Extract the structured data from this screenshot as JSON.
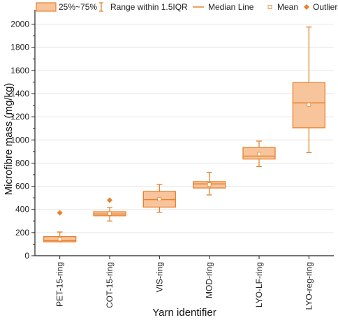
{
  "chart_data": {
    "type": "box",
    "ylabel": "Microfibre mass (mg/kg)",
    "xlabel": "Yarn identifier",
    "ylim": [
      0,
      2100
    ],
    "yticks": [
      0,
      200,
      400,
      600,
      800,
      1000,
      1200,
      1400,
      1600,
      1800,
      2000
    ],
    "grid": true,
    "legend": {
      "placement": "top",
      "entries": [
        "25%~75%",
        "Range within 1.5IQR",
        "Median Line",
        "Mean",
        "Outliers"
      ]
    },
    "colors": {
      "box_fill": "#f8c49c",
      "box_stroke": "#e8822e",
      "grid": "#e6e6e6"
    },
    "categories": [
      "PET-15-ring",
      "COT-15-ring",
      "VIS-ring",
      "MOD-ring",
      "LYO-LF-ring",
      "LYO-reg-ring"
    ],
    "boxes": [
      {
        "category": "PET-15-ring",
        "whisker_low": 120,
        "q1": 120,
        "median": 130,
        "q3": 165,
        "whisker_high": 205,
        "mean": 143,
        "outliers": [
          370
        ]
      },
      {
        "category": "COT-15-ring",
        "whisker_low": 300,
        "q1": 345,
        "median": 360,
        "q3": 380,
        "whisker_high": 415,
        "mean": 363,
        "outliers": [
          480
        ]
      },
      {
        "category": "VIS-ring",
        "whisker_low": 375,
        "q1": 420,
        "median": 485,
        "q3": 555,
        "whisker_high": 615,
        "mean": 488,
        "outliers": []
      },
      {
        "category": "MOD-ring",
        "whisker_low": 525,
        "q1": 585,
        "median": 620,
        "q3": 640,
        "whisker_high": 720,
        "mean": 615,
        "outliers": []
      },
      {
        "category": "LYO-LF-ring",
        "whisker_low": 770,
        "q1": 835,
        "median": 860,
        "q3": 935,
        "whisker_high": 990,
        "mean": 878,
        "outliers": []
      },
      {
        "category": "LYO-reg-ring",
        "whisker_low": 890,
        "q1": 1105,
        "median": 1320,
        "q3": 1495,
        "whisker_high": 1975,
        "mean": 1305,
        "outliers": []
      }
    ]
  }
}
